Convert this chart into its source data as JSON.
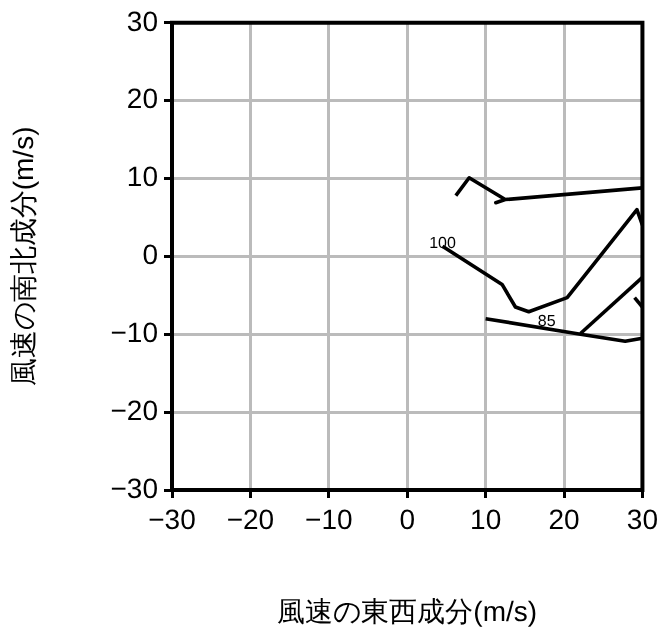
{
  "chart_data": {
    "type": "line",
    "xlabel": "風速の東西成分(m/s)",
    "ylabel": "風速の南北成分(m/s)",
    "xlim": [
      -30,
      30
    ],
    "ylim": [
      -30,
      30
    ],
    "xticks": [
      {
        "value": -30,
        "label": "−30"
      },
      {
        "value": -20,
        "label": "−20"
      },
      {
        "value": -10,
        "label": "−10"
      },
      0,
      10,
      20,
      30
    ],
    "yticks": [
      {
        "value": -30,
        "label": "−30"
      },
      {
        "value": -20,
        "label": "−20"
      },
      {
        "value": -10,
        "label": "−10"
      },
      0,
      10,
      20,
      30
    ],
    "grid": true,
    "marker": "none",
    "line_style": "solid",
    "series": [
      {
        "color": "#000000",
        "x": [
          6.2,
          7.9,
          12.5,
          11.3,
          12.5,
          30
        ],
        "values": [
          7.8,
          10.1,
          7.3,
          6.9,
          7.3,
          8.8
        ]
      },
      {
        "color": "#000000",
        "x": [
          4.5,
          12.1,
          13.8,
          15.5,
          20.4,
          29.3,
          30
        ],
        "values": [
          1.3,
          -3.6,
          -6.5,
          -7.1,
          -5.3,
          6,
          4
        ]
      },
      {
        "color": "#000000",
        "x": [
          30,
          22.1
        ],
        "values": [
          -2.7,
          -9.9
        ]
      },
      {
        "color": "#000000",
        "x": [
          10,
          22.1,
          27.8,
          30
        ],
        "values": [
          -8,
          -10,
          -10.9,
          -10.5
        ]
      },
      {
        "color": "#000000",
        "x": [
          29,
          30
        ],
        "values": [
          -5.3,
          -6.5
        ]
      }
    ],
    "annotations": [
      {
        "text": "100",
        "x": 4.5,
        "y": 1.6
      },
      {
        "text": "85",
        "x": 17.8,
        "y": -8.4
      }
    ]
  }
}
